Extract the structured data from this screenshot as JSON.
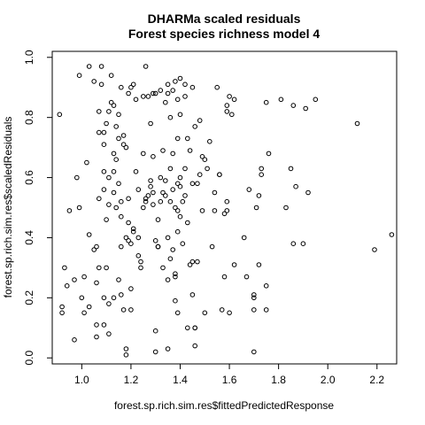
{
  "chart_data": {
    "type": "scatter",
    "title": "DHARMa scaled residuals",
    "subtitle": "Forest species richness model 4",
    "xlabel": "forest.sp.rich.sim.res$fittedPredictedResponse",
    "ylabel": "forest.sp.rich.sim.res$scaledResiduals",
    "xlim": [
      0.88,
      2.28
    ],
    "ylim": [
      -0.02,
      1.02
    ],
    "xticks": [
      "1.0",
      "1.2",
      "1.4",
      "1.6",
      "1.8",
      "2.0",
      "2.2"
    ],
    "yticks": [
      "0.0",
      "0.2",
      "0.4",
      "0.6",
      "0.8",
      "1.0"
    ],
    "grid": false,
    "marker": "open-circle",
    "points": [
      [
        0.91,
        0.81
      ],
      [
        0.93,
        0.3
      ],
      [
        0.92,
        0.17
      ],
      [
        0.92,
        0.15
      ],
      [
        0.94,
        0.24
      ],
      [
        0.95,
        0.49
      ],
      [
        0.97,
        0.26
      ],
      [
        0.97,
        0.06
      ],
      [
        0.98,
        0.6
      ],
      [
        0.99,
        0.5
      ],
      [
        0.99,
        0.94
      ],
      [
        1.0,
        0.2
      ],
      [
        1.01,
        0.27
      ],
      [
        1.01,
        0.15
      ],
      [
        1.02,
        0.65
      ],
      [
        1.03,
        0.41
      ],
      [
        1.03,
        0.17
      ],
      [
        1.03,
        0.97
      ],
      [
        1.05,
        0.92
      ],
      [
        1.05,
        0.36
      ],
      [
        1.06,
        0.11
      ],
      [
        1.06,
        0.37
      ],
      [
        1.06,
        0.07
      ],
      [
        1.06,
        0.25
      ],
      [
        1.07,
        0.82
      ],
      [
        1.07,
        0.3
      ],
      [
        1.07,
        0.75
      ],
      [
        1.07,
        0.53
      ],
      [
        1.08,
        0.91
      ],
      [
        1.08,
        0.97
      ],
      [
        1.09,
        0.75
      ],
      [
        1.09,
        0.71
      ],
      [
        1.09,
        0.62
      ],
      [
        1.09,
        0.56
      ],
      [
        1.09,
        0.2
      ],
      [
        1.09,
        0.11
      ],
      [
        1.1,
        0.78
      ],
      [
        1.1,
        0.46
      ],
      [
        1.1,
        0.3
      ],
      [
        1.11,
        0.6
      ],
      [
        1.11,
        0.51
      ],
      [
        1.11,
        0.18
      ],
      [
        1.11,
        0.08
      ],
      [
        1.11,
        0.82
      ],
      [
        1.12,
        0.94
      ],
      [
        1.12,
        0.85
      ],
      [
        1.13,
        0.84
      ],
      [
        1.13,
        0.62
      ],
      [
        1.13,
        0.55
      ],
      [
        1.13,
        0.2
      ],
      [
        1.13,
        0.68
      ],
      [
        1.14,
        0.66
      ],
      [
        1.14,
        0.5
      ],
      [
        1.14,
        0.77
      ],
      [
        1.15,
        0.81
      ],
      [
        1.15,
        0.73
      ],
      [
        1.15,
        0.58
      ],
      [
        1.15,
        0.26
      ],
      [
        1.16,
        0.9
      ],
      [
        1.16,
        0.52
      ],
      [
        1.16,
        0.47
      ],
      [
        1.16,
        0.37
      ],
      [
        1.16,
        0.21
      ],
      [
        1.17,
        0.71
      ],
      [
        1.17,
        0.16
      ],
      [
        1.17,
        0.74
      ],
      [
        1.18,
        0.7
      ],
      [
        1.18,
        0.4
      ],
      [
        1.18,
        0.03
      ],
      [
        1.18,
        0.01
      ],
      [
        1.19,
        0.88
      ],
      [
        1.19,
        0.53
      ],
      [
        1.19,
        0.45
      ],
      [
        1.19,
        0.39
      ],
      [
        1.2,
        0.9
      ],
      [
        1.2,
        0.38
      ],
      [
        1.2,
        0.16
      ],
      [
        1.2,
        0.23
      ],
      [
        1.21,
        0.43
      ],
      [
        1.21,
        0.91
      ],
      [
        1.21,
        0.42
      ],
      [
        1.22,
        0.62
      ],
      [
        1.22,
        0.86
      ],
      [
        1.23,
        0.56
      ],
      [
        1.23,
        0.4
      ],
      [
        1.23,
        0.34
      ],
      [
        1.24,
        0.32
      ],
      [
        1.24,
        0.3
      ],
      [
        1.25,
        0.87
      ],
      [
        1.25,
        0.68
      ],
      [
        1.25,
        0.5
      ],
      [
        1.26,
        0.53
      ],
      [
        1.26,
        0.52
      ],
      [
        1.26,
        0.97
      ],
      [
        1.27,
        0.87
      ],
      [
        1.27,
        0.54
      ],
      [
        1.28,
        0.78
      ],
      [
        1.28,
        0.59
      ],
      [
        1.28,
        0.57
      ],
      [
        1.29,
        0.88
      ],
      [
        1.29,
        0.67
      ],
      [
        1.29,
        0.55
      ],
      [
        1.29,
        0.51
      ],
      [
        1.3,
        0.88
      ],
      [
        1.3,
        0.39
      ],
      [
        1.3,
        0.09
      ],
      [
        1.3,
        0.02
      ],
      [
        1.31,
        0.46
      ],
      [
        1.31,
        0.37
      ],
      [
        1.31,
        0.37
      ],
      [
        1.32,
        0.89
      ],
      [
        1.32,
        0.6
      ],
      [
        1.32,
        0.52
      ],
      [
        1.33,
        0.69
      ],
      [
        1.33,
        0.55
      ],
      [
        1.33,
        0.3
      ],
      [
        1.34,
        0.85
      ],
      [
        1.34,
        0.59
      ],
      [
        1.34,
        0.54
      ],
      [
        1.35,
        0.91
      ],
      [
        1.35,
        0.88
      ],
      [
        1.35,
        0.4
      ],
      [
        1.35,
        0.26
      ],
      [
        1.35,
        0.03
      ],
      [
        1.36,
        0.8
      ],
      [
        1.36,
        0.63
      ],
      [
        1.36,
        0.52
      ],
      [
        1.36,
        0.33
      ],
      [
        1.37,
        0.89
      ],
      [
        1.37,
        0.68
      ],
      [
        1.37,
        0.56
      ],
      [
        1.37,
        0.36
      ],
      [
        1.38,
        0.92
      ],
      [
        1.38,
        0.5
      ],
      [
        1.38,
        0.28
      ],
      [
        1.38,
        0.27
      ],
      [
        1.38,
        0.19
      ],
      [
        1.39,
        0.86
      ],
      [
        1.39,
        0.73
      ],
      [
        1.39,
        0.58
      ],
      [
        1.39,
        0.42
      ],
      [
        1.39,
        0.49
      ],
      [
        1.39,
        0.15
      ],
      [
        1.4,
        0.93
      ],
      [
        1.4,
        0.81
      ],
      [
        1.4,
        0.6
      ],
      [
        1.4,
        0.57
      ],
      [
        1.4,
        0.47
      ],
      [
        1.41,
        0.52
      ],
      [
        1.41,
        0.38
      ],
      [
        1.42,
        0.91
      ],
      [
        1.42,
        0.87
      ],
      [
        1.42,
        0.63
      ],
      [
        1.42,
        0.54
      ],
      [
        1.43,
        0.73
      ],
      [
        1.43,
        0.45
      ],
      [
        1.43,
        0.1
      ],
      [
        1.44,
        0.69
      ],
      [
        1.44,
        0.31
      ],
      [
        1.45,
        0.9
      ],
      [
        1.45,
        0.58
      ],
      [
        1.45,
        0.32
      ],
      [
        1.45,
        0.21
      ],
      [
        1.46,
        0.77
      ],
      [
        1.46,
        0.1
      ],
      [
        1.46,
        0.1
      ],
      [
        1.46,
        0.04
      ],
      [
        1.47,
        0.32
      ],
      [
        1.47,
        0.58
      ],
      [
        1.48,
        0.79
      ],
      [
        1.48,
        0.61
      ],
      [
        1.49,
        0.67
      ],
      [
        1.49,
        0.49
      ],
      [
        1.5,
        0.15
      ],
      [
        1.5,
        0.66
      ],
      [
        1.51,
        0.63
      ],
      [
        1.52,
        0.72
      ],
      [
        1.53,
        0.37
      ],
      [
        1.54,
        0.49
      ],
      [
        1.54,
        0.55
      ],
      [
        1.55,
        0.9
      ],
      [
        1.56,
        0.61
      ],
      [
        1.56,
        0.61
      ],
      [
        1.57,
        0.16
      ],
      [
        1.58,
        0.48
      ],
      [
        1.58,
        0.27
      ],
      [
        1.59,
        0.84
      ],
      [
        1.59,
        0.82
      ],
      [
        1.59,
        0.52
      ],
      [
        1.59,
        0.49
      ],
      [
        1.6,
        0.87
      ],
      [
        1.6,
        0.15
      ],
      [
        1.61,
        0.81
      ],
      [
        1.62,
        0.86
      ],
      [
        1.62,
        0.31
      ],
      [
        1.66,
        0.4
      ],
      [
        1.67,
        0.27
      ],
      [
        1.68,
        0.56
      ],
      [
        1.7,
        0.21
      ],
      [
        1.7,
        0.2
      ],
      [
        1.7,
        0.16
      ],
      [
        1.7,
        0.02
      ],
      [
        1.71,
        0.5
      ],
      [
        1.72,
        0.31
      ],
      [
        1.72,
        0.54
      ],
      [
        1.73,
        0.63
      ],
      [
        1.73,
        0.61
      ],
      [
        1.75,
        0.85
      ],
      [
        1.75,
        0.24
      ],
      [
        1.75,
        0.16
      ],
      [
        1.76,
        0.68
      ],
      [
        1.81,
        0.86
      ],
      [
        1.83,
        0.5
      ],
      [
        1.85,
        0.63
      ],
      [
        1.86,
        0.84
      ],
      [
        1.86,
        0.38
      ],
      [
        1.87,
        0.57
      ],
      [
        1.9,
        0.38
      ],
      [
        1.91,
        0.83
      ],
      [
        1.92,
        0.55
      ],
      [
        1.95,
        0.86
      ],
      [
        2.12,
        0.78
      ],
      [
        2.19,
        0.36
      ],
      [
        2.26,
        0.41
      ]
    ]
  }
}
